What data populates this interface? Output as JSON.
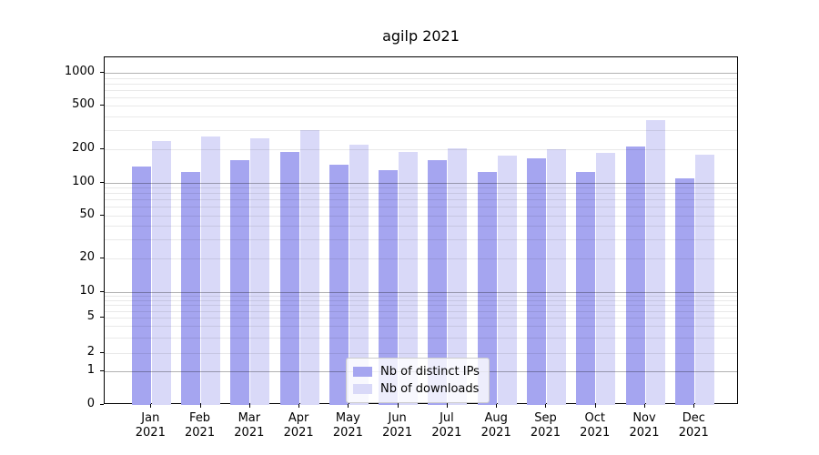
{
  "figure": {
    "title": "agilp 2021"
  },
  "chart_data": {
    "type": "bar",
    "title": "agilp 2021",
    "categories": [
      "Jan",
      "Feb",
      "Mar",
      "Apr",
      "May",
      "Jun",
      "Jul",
      "Aug",
      "Sep",
      "Oct",
      "Nov",
      "Dec"
    ],
    "category_year": "2021",
    "series": [
      {
        "name": "Nb of distinct IPs",
        "color": "#a5a5f0",
        "values": [
          140,
          125,
          160,
          190,
          145,
          130,
          160,
          125,
          165,
          125,
          215,
          110
        ]
      },
      {
        "name": "Nb of downloads",
        "color": "#d9d9f8",
        "values": [
          240,
          265,
          255,
          300,
          220,
          190,
          205,
          175,
          200,
          185,
          370,
          180
        ]
      }
    ],
    "yscale": "symlog",
    "ylim": [
      0,
      1000
    ],
    "yticks": [
      0,
      1,
      2,
      5,
      10,
      20,
      50,
      100,
      200,
      500,
      1000
    ],
    "xlabel": "",
    "ylabel": "",
    "grid": true,
    "legend_position": "lower center"
  }
}
